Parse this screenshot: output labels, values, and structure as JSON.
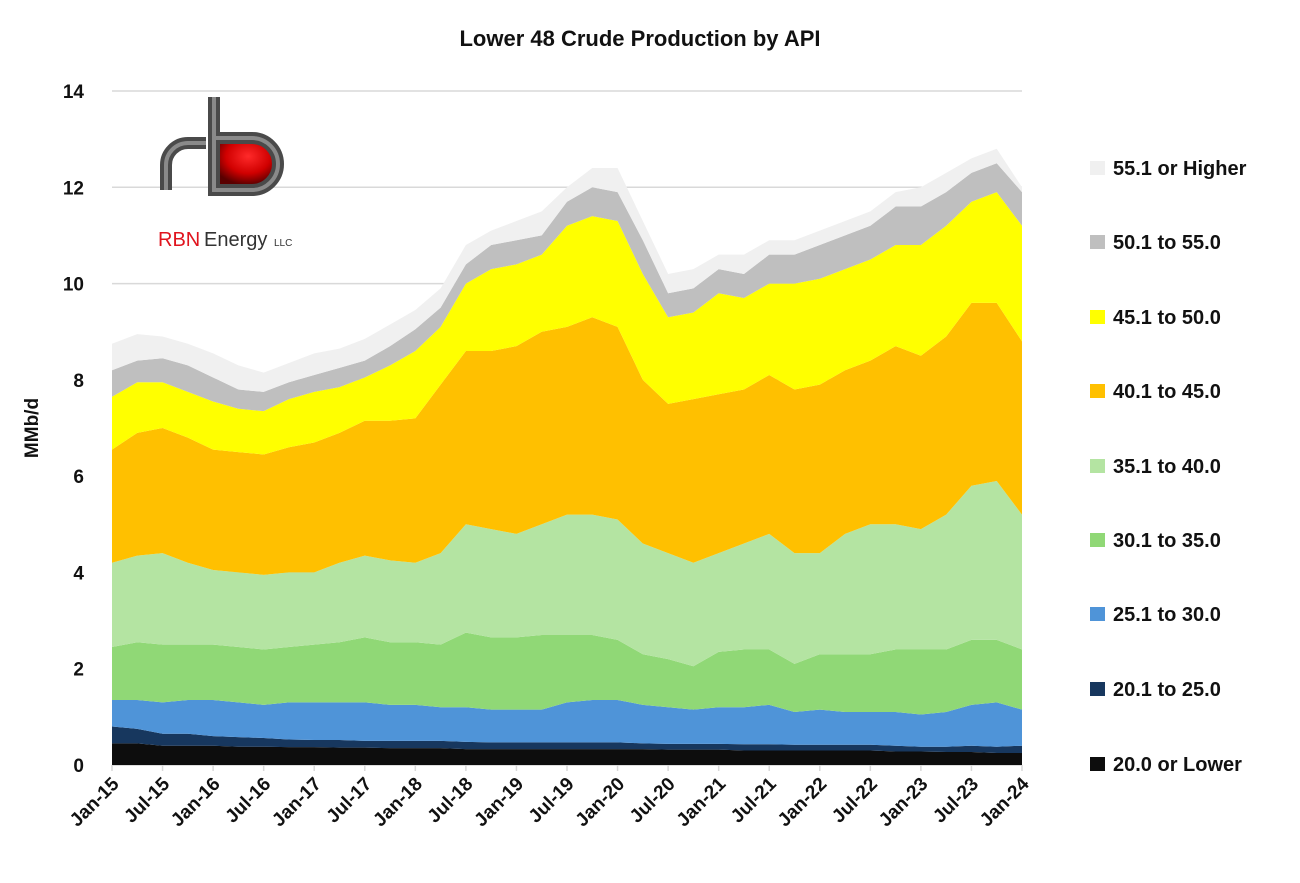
{
  "chart_data": {
    "type": "area",
    "stacked": true,
    "title": "Lower 48 Crude Production by API",
    "ylabel": "MMb/d",
    "xlabel": "",
    "ylim": [
      0,
      14
    ],
    "yticks": [
      0,
      2,
      4,
      6,
      8,
      10,
      12,
      14
    ],
    "grid": true,
    "legend_position": "right",
    "xtick_labels": [
      "Jan-15",
      "Jul-15",
      "Jan-16",
      "Jul-16",
      "Jan-17",
      "Jul-17",
      "Jan-18",
      "Jul-18",
      "Jan-19",
      "Jul-19",
      "Jan-20",
      "Jul-20",
      "Jan-21",
      "Jul-21",
      "Jan-22",
      "Jul-22",
      "Jan-23",
      "Jul-23",
      "Jan-24"
    ],
    "x": [
      "Jan-15",
      "Apr-15",
      "Jul-15",
      "Oct-15",
      "Jan-16",
      "Apr-16",
      "Jul-16",
      "Oct-16",
      "Jan-17",
      "Apr-17",
      "Jul-17",
      "Oct-17",
      "Jan-18",
      "Apr-18",
      "Jul-18",
      "Oct-18",
      "Jan-19",
      "Apr-19",
      "Jul-19",
      "Oct-19",
      "Jan-20",
      "Apr-20",
      "Jul-20",
      "Oct-20",
      "Jan-21",
      "Apr-21",
      "Jul-21",
      "Oct-21",
      "Jan-22",
      "Apr-22",
      "Jul-22",
      "Oct-22",
      "Jan-23",
      "Apr-23",
      "Jul-23",
      "Oct-23",
      "Jan-24"
    ],
    "series": [
      {
        "name": "20.0 or Lower",
        "color": "#0d0d0d",
        "values": [
          0.45,
          0.45,
          0.4,
          0.4,
          0.4,
          0.38,
          0.38,
          0.37,
          0.37,
          0.36,
          0.36,
          0.35,
          0.35,
          0.35,
          0.33,
          0.33,
          0.33,
          0.33,
          0.33,
          0.33,
          0.33,
          0.33,
          0.32,
          0.32,
          0.32,
          0.3,
          0.3,
          0.3,
          0.3,
          0.3,
          0.3,
          0.28,
          0.28,
          0.27,
          0.27,
          0.25,
          0.25
        ]
      },
      {
        "name": "20.1 to 25.0",
        "color": "#17375e",
        "values": [
          0.35,
          0.3,
          0.25,
          0.25,
          0.2,
          0.2,
          0.18,
          0.16,
          0.15,
          0.16,
          0.14,
          0.15,
          0.15,
          0.15,
          0.15,
          0.14,
          0.14,
          0.14,
          0.14,
          0.14,
          0.14,
          0.12,
          0.12,
          0.12,
          0.12,
          0.13,
          0.13,
          0.12,
          0.12,
          0.12,
          0.12,
          0.12,
          0.1,
          0.11,
          0.13,
          0.13,
          0.15
        ]
      },
      {
        "name": " 25.1 to 30.0",
        "color": "#4f94d8",
        "values": [
          0.55,
          0.6,
          0.65,
          0.7,
          0.75,
          0.72,
          0.69,
          0.77,
          0.78,
          0.78,
          0.8,
          0.75,
          0.75,
          0.7,
          0.72,
          0.68,
          0.68,
          0.68,
          0.83,
          0.88,
          0.88,
          0.8,
          0.76,
          0.71,
          0.76,
          0.77,
          0.82,
          0.68,
          0.73,
          0.68,
          0.68,
          0.7,
          0.67,
          0.72,
          0.85,
          0.92,
          0.75
        ]
      },
      {
        "name": "30.1 to 35.0",
        "color": "#90d876",
        "values": [
          1.1,
          1.2,
          1.2,
          1.15,
          1.15,
          1.15,
          1.15,
          1.15,
          1.2,
          1.25,
          1.35,
          1.3,
          1.3,
          1.3,
          1.55,
          1.5,
          1.5,
          1.55,
          1.4,
          1.35,
          1.25,
          1.05,
          1.0,
          0.9,
          1.15,
          1.2,
          1.15,
          1.0,
          1.15,
          1.2,
          1.2,
          1.3,
          1.35,
          1.3,
          1.35,
          1.3,
          1.25
        ]
      },
      {
        "name": "35.1 to 40.0",
        "color": "#b4e4a2",
        "values": [
          1.75,
          1.8,
          1.9,
          1.7,
          1.55,
          1.55,
          1.55,
          1.55,
          1.5,
          1.65,
          1.7,
          1.7,
          1.65,
          1.9,
          2.25,
          2.25,
          2.15,
          2.3,
          2.5,
          2.5,
          2.5,
          2.3,
          2.2,
          2.15,
          2.05,
          2.2,
          2.4,
          2.3,
          2.1,
          2.5,
          2.7,
          2.6,
          2.5,
          2.8,
          3.2,
          3.3,
          2.8
        ]
      },
      {
        "name": "40.1 to 45.0",
        "color": "#ffc000",
        "values": [
          2.35,
          2.55,
          2.6,
          2.6,
          2.5,
          2.5,
          2.5,
          2.6,
          2.7,
          2.7,
          2.8,
          2.9,
          3.0,
          3.5,
          3.6,
          3.7,
          3.9,
          4.0,
          3.9,
          4.1,
          4.0,
          3.4,
          3.1,
          3.4,
          3.3,
          3.2,
          3.3,
          3.4,
          3.5,
          3.4,
          3.4,
          3.7,
          3.6,
          3.7,
          3.8,
          3.7,
          3.6
        ]
      },
      {
        "name": "45.1 to 50.0",
        "color": "#ffff00",
        "values": [
          1.1,
          1.05,
          0.95,
          0.95,
          1.0,
          0.9,
          0.9,
          1.0,
          1.05,
          0.95,
          0.9,
          1.15,
          1.4,
          1.2,
          1.4,
          1.7,
          1.7,
          1.6,
          2.1,
          2.1,
          2.2,
          2.2,
          1.8,
          1.8,
          2.1,
          1.9,
          1.9,
          2.2,
          2.2,
          2.1,
          2.1,
          2.1,
          2.3,
          2.3,
          2.1,
          2.3,
          2.4
        ]
      },
      {
        "name": "50.1 to 55.0",
        "color": "#bfbfbf",
        "values": [
          0.55,
          0.45,
          0.5,
          0.55,
          0.5,
          0.4,
          0.4,
          0.35,
          0.35,
          0.4,
          0.35,
          0.4,
          0.45,
          0.4,
          0.4,
          0.5,
          0.5,
          0.4,
          0.5,
          0.6,
          0.6,
          0.7,
          0.5,
          0.5,
          0.5,
          0.5,
          0.6,
          0.6,
          0.7,
          0.7,
          0.7,
          0.8,
          0.8,
          0.7,
          0.6,
          0.6,
          0.7
        ]
      },
      {
        "name": "55.1 or Higher",
        "color": "#f0f0f0",
        "values": [
          0.55,
          0.55,
          0.45,
          0.45,
          0.5,
          0.5,
          0.4,
          0.4,
          0.45,
          0.4,
          0.45,
          0.45,
          0.4,
          0.4,
          0.4,
          0.3,
          0.4,
          0.5,
          0.3,
          0.4,
          0.5,
          0.4,
          0.4,
          0.4,
          0.3,
          0.4,
          0.3,
          0.3,
          0.3,
          0.3,
          0.3,
          0.3,
          0.4,
          0.4,
          0.3,
          0.3,
          0.1
        ]
      }
    ]
  },
  "logo": {
    "brand": "RBN",
    "name": "Energy",
    "suffix": "LLC",
    "accent": "#e0141e"
  }
}
